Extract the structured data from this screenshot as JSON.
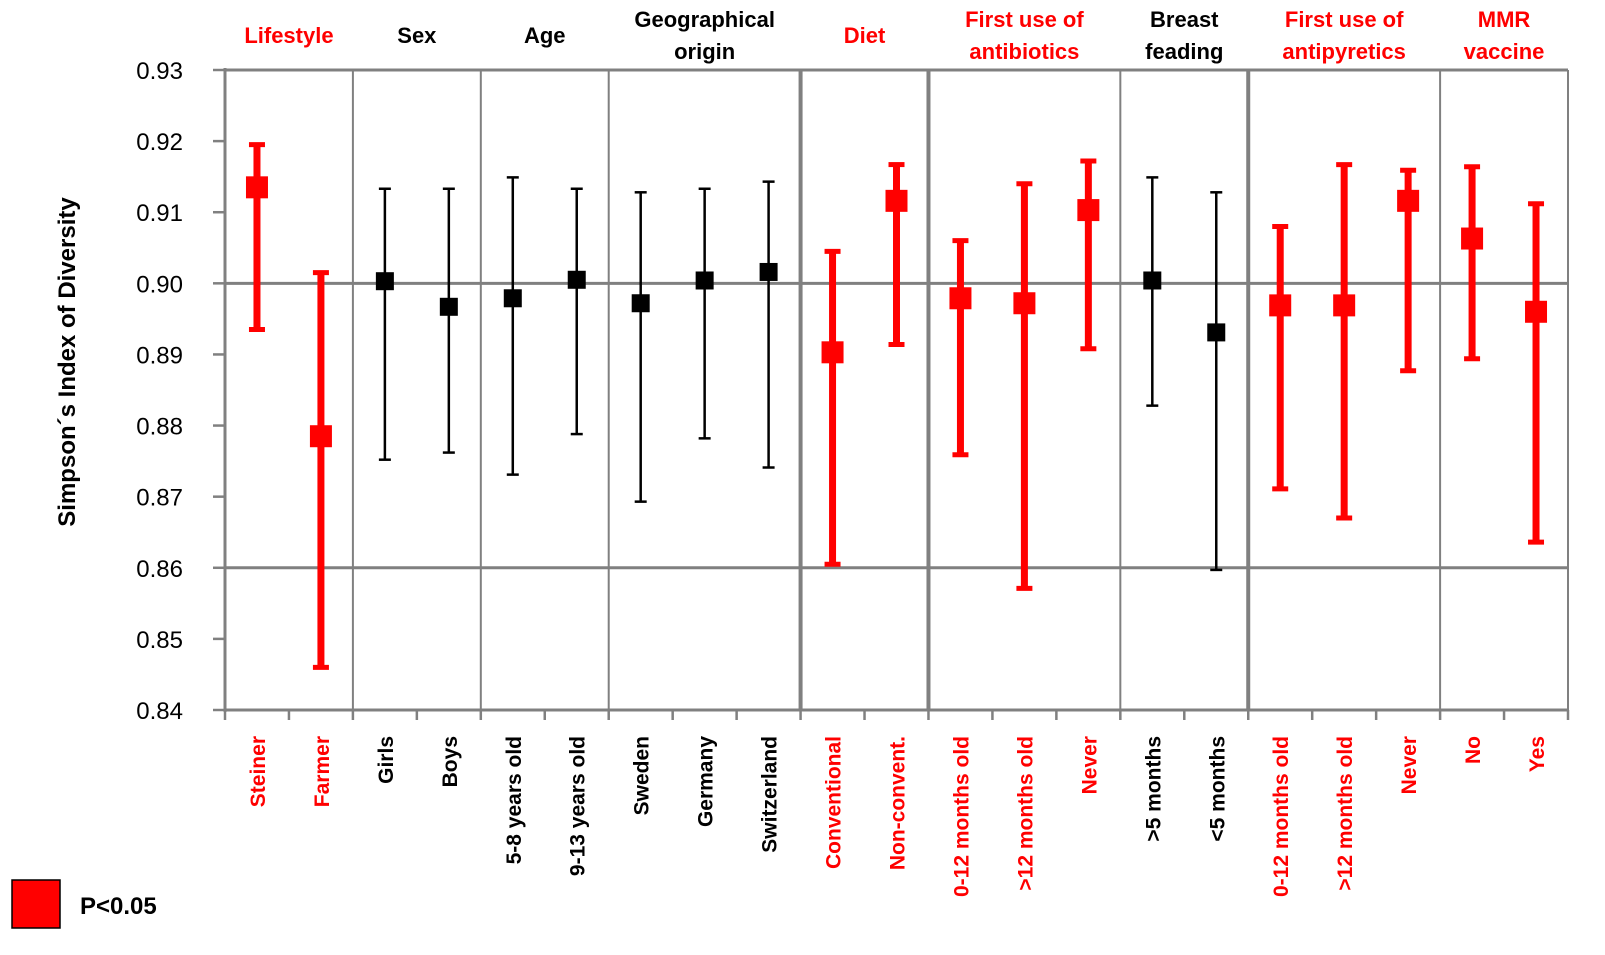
{
  "chart_data": {
    "type": "scatter",
    "ylabel": "Simpson´s Index of Diversity",
    "xlabel": "",
    "ylim": [
      0.84,
      0.93
    ],
    "yticks": [
      "0.84",
      "0.85",
      "0.86",
      "0.87",
      "0.88",
      "0.89",
      "0.90",
      "0.91",
      "0.92",
      "0.93"
    ],
    "grid": "horizontal lines at 0.86, 0.90, 0.93; vertical separators between groups",
    "colors": {
      "significant": "#ff0000",
      "non_significant": "#000000",
      "grid": "#808080"
    },
    "groups": [
      {
        "label_lines": [
          "Lifestyle"
        ],
        "significant": true,
        "n": 2
      },
      {
        "label_lines": [
          "Sex"
        ],
        "significant": false,
        "n": 2
      },
      {
        "label_lines": [
          "Age"
        ],
        "significant": false,
        "n": 2
      },
      {
        "label_lines": [
          "Geographical",
          "origin"
        ],
        "significant": false,
        "n": 3
      },
      {
        "label_lines": [
          "Diet"
        ],
        "significant": true,
        "n": 2
      },
      {
        "label_lines": [
          "First use of",
          "antibiotics"
        ],
        "significant": true,
        "n": 3
      },
      {
        "label_lines": [
          "Breast",
          "feading"
        ],
        "significant": false,
        "n": 2
      },
      {
        "label_lines": [
          "First use of",
          "antipyretics"
        ],
        "significant": true,
        "n": 3
      },
      {
        "label_lines": [
          "MMR",
          "vaccine"
        ],
        "significant": true,
        "n": 2
      }
    ],
    "points": [
      {
        "category": "Steiner",
        "group": 0,
        "value": 0.9135,
        "lower": 0.8935,
        "upper": 0.9195
      },
      {
        "category": "Farmer",
        "group": 0,
        "value": 0.8785,
        "lower": 0.846,
        "upper": 0.9015
      },
      {
        "category": "Girls",
        "group": 1,
        "value": 0.9003,
        "lower": 0.8752,
        "upper": 0.9133
      },
      {
        "category": "Boys",
        "group": 1,
        "value": 0.8967,
        "lower": 0.8762,
        "upper": 0.9133
      },
      {
        "category": "5-8 years old",
        "group": 2,
        "value": 0.8979,
        "lower": 0.8731,
        "upper": 0.9149
      },
      {
        "category": "9-13 years old",
        "group": 2,
        "value": 0.9005,
        "lower": 0.8788,
        "upper": 0.9133
      },
      {
        "category": "Sweden",
        "group": 3,
        "value": 0.8972,
        "lower": 0.8693,
        "upper": 0.9128
      },
      {
        "category": "Germany",
        "group": 3,
        "value": 0.9004,
        "lower": 0.8782,
        "upper": 0.9133
      },
      {
        "category": "Switzerland",
        "group": 3,
        "value": 0.9016,
        "lower": 0.8741,
        "upper": 0.9143
      },
      {
        "category": "Conventional",
        "group": 4,
        "value": 0.8903,
        "lower": 0.8605,
        "upper": 0.9045
      },
      {
        "category": "Non-convent.",
        "group": 4,
        "value": 0.9116,
        "lower": 0.8914,
        "upper": 0.9167
      },
      {
        "category": "0-12 months old",
        "group": 5,
        "value": 0.8979,
        "lower": 0.8759,
        "upper": 0.906
      },
      {
        "category": ">12 months old",
        "group": 5,
        "value": 0.8972,
        "lower": 0.8571,
        "upper": 0.914
      },
      {
        "category": "Never",
        "group": 5,
        "value": 0.9103,
        "lower": 0.8908,
        "upper": 0.9172
      },
      {
        "category": ">5 months",
        "group": 6,
        "value": 0.9004,
        "lower": 0.8828,
        "upper": 0.9149
      },
      {
        "category": "<5 months",
        "group": 6,
        "value": 0.8931,
        "lower": 0.8597,
        "upper": 0.9128
      },
      {
        "category": "0-12 months old",
        "group": 7,
        "value": 0.8969,
        "lower": 0.8711,
        "upper": 0.908
      },
      {
        "category": ">12 months old",
        "group": 7,
        "value": 0.8969,
        "lower": 0.867,
        "upper": 0.9167
      },
      {
        "category": "Never",
        "group": 7,
        "value": 0.9116,
        "lower": 0.8877,
        "upper": 0.9159
      },
      {
        "category": "No",
        "group": 8,
        "value": 0.9063,
        "lower": 0.8894,
        "upper": 0.9164
      },
      {
        "category": "Yes",
        "group": 8,
        "value": 0.896,
        "lower": 0.8636,
        "upper": 0.9112
      }
    ],
    "legend": {
      "label": "P<0.05",
      "placement": "bottom-left"
    }
  }
}
